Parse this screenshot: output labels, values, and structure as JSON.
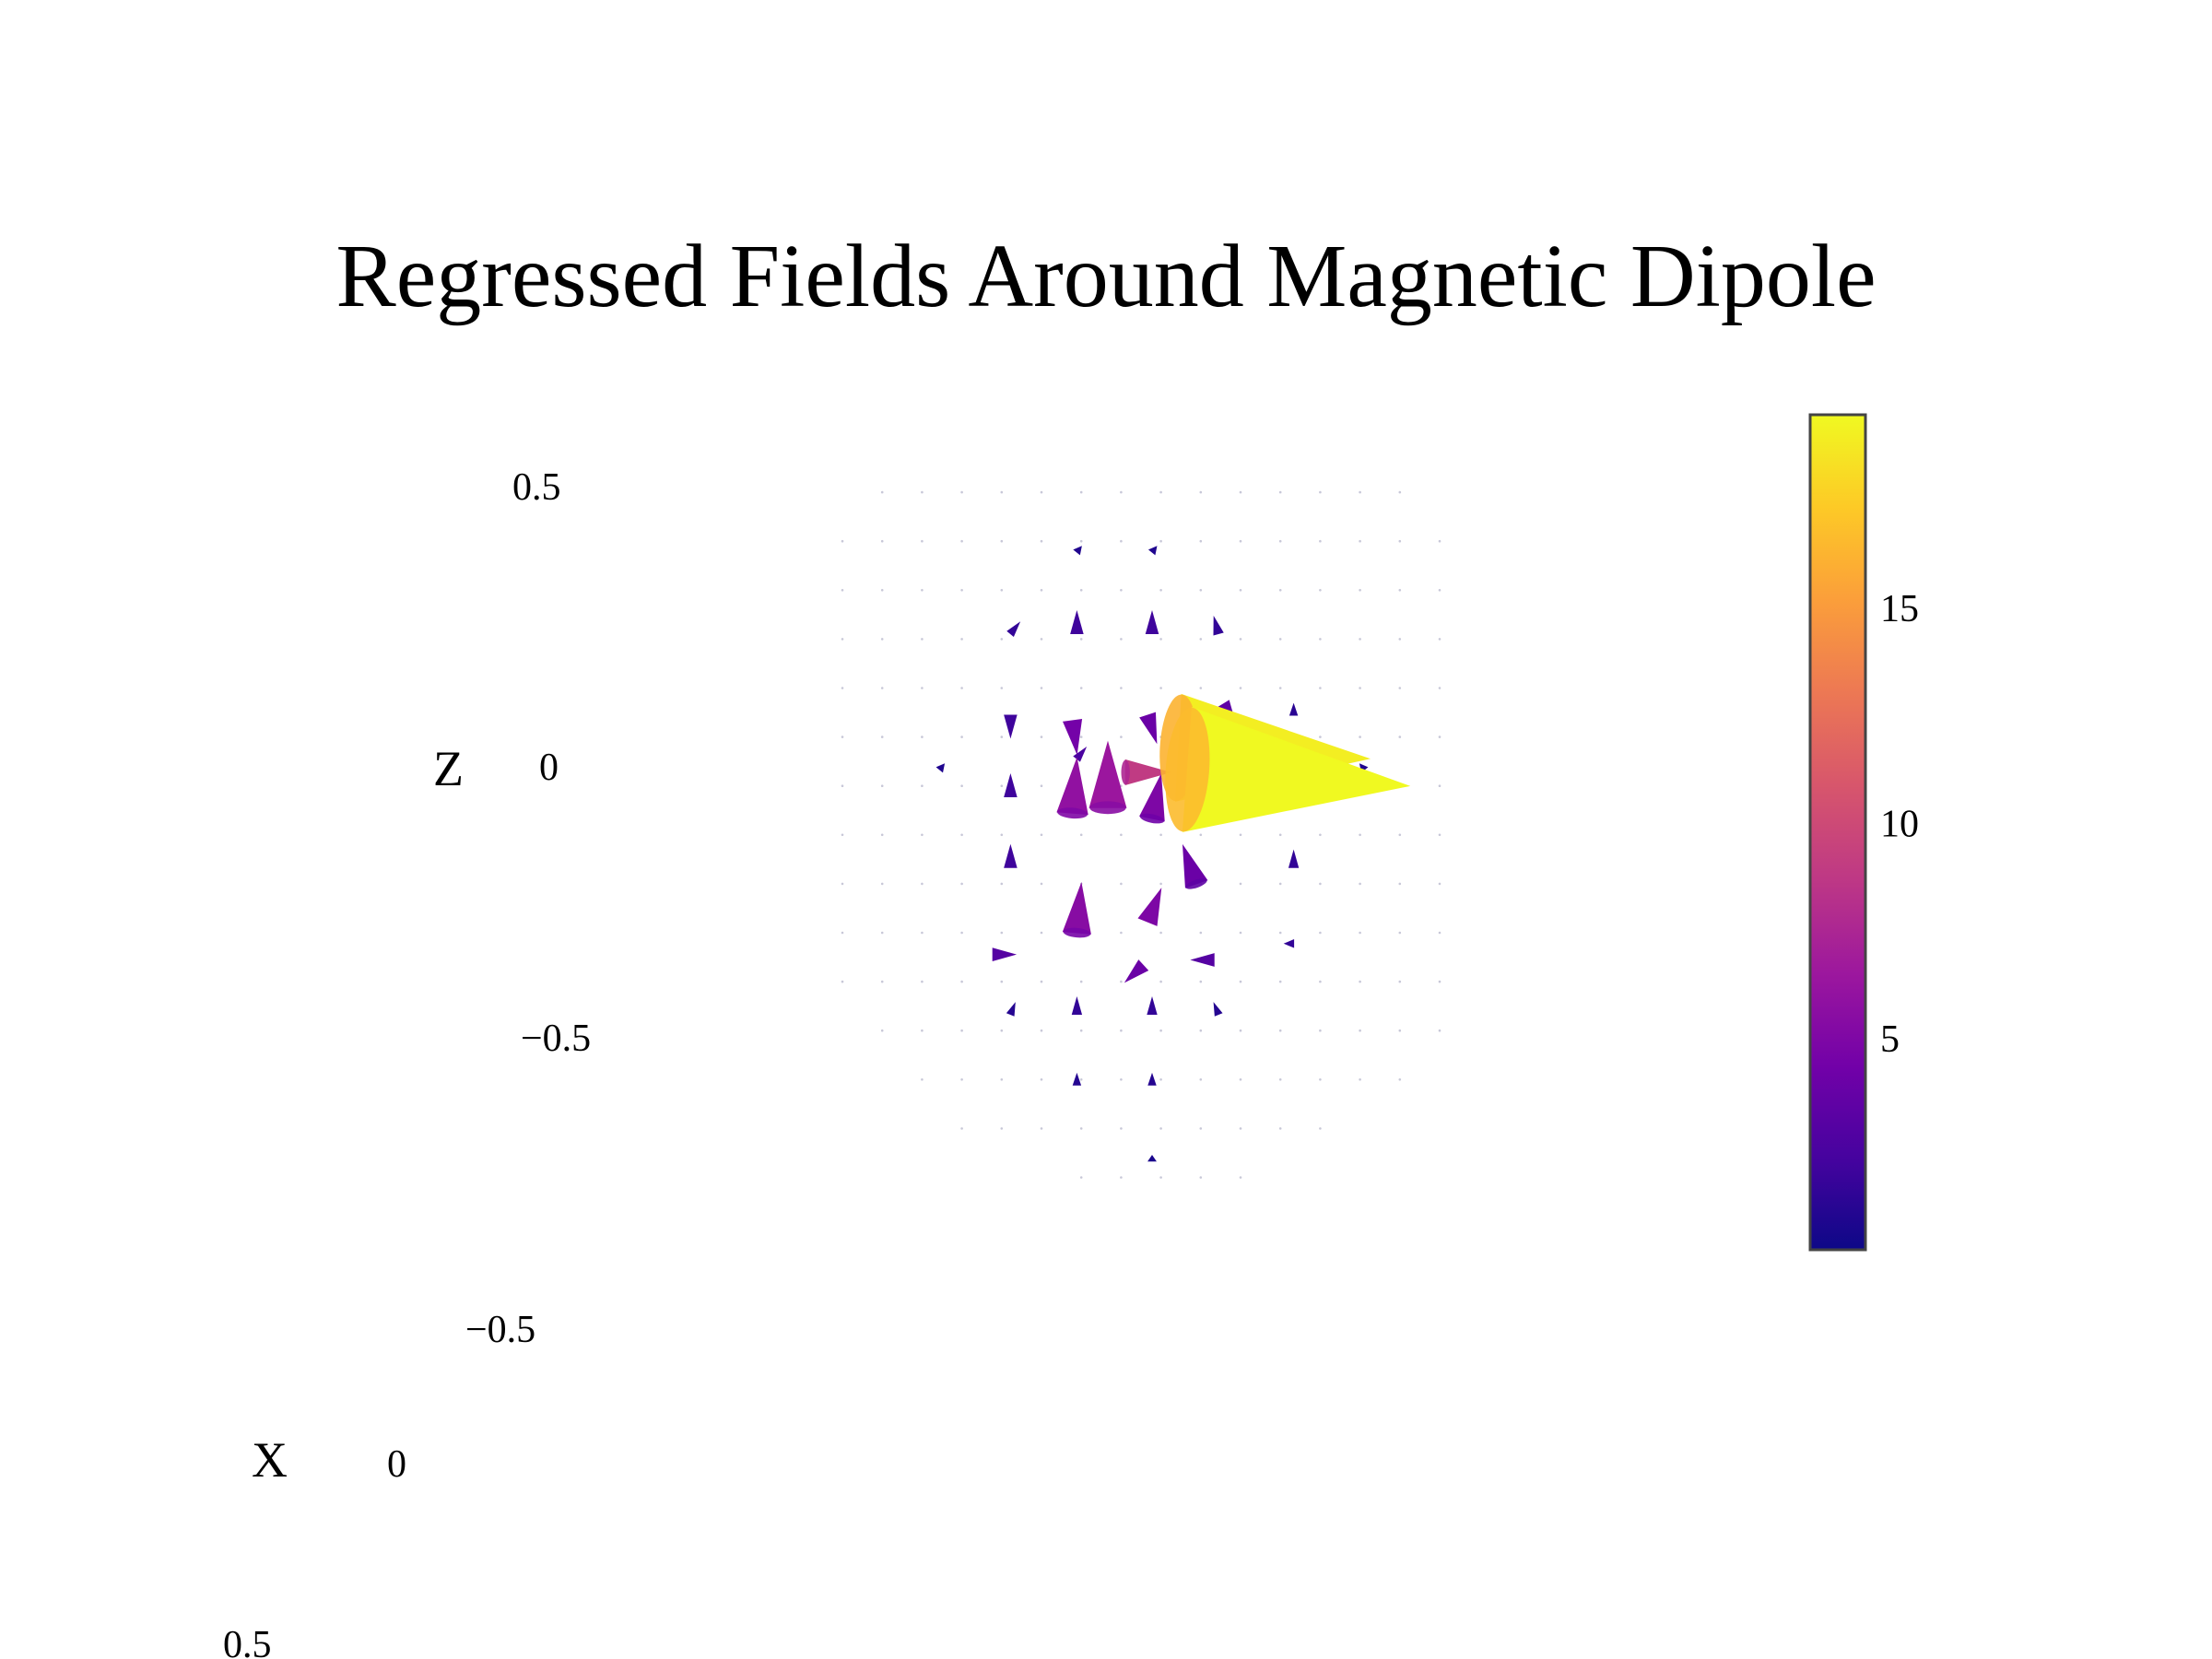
{
  "chart_data": {
    "type": "cone",
    "title": "Regressed Fields Around Magnetic Dipole",
    "scene": {
      "z_axis": {
        "label": "Z",
        "ticks": [
          "0.5",
          "0",
          "−0.5"
        ]
      },
      "x_axis": {
        "label": "X",
        "ticks": [
          "−0.5",
          "0",
          "0.5"
        ]
      },
      "y_axis": {
        "label": "",
        "ticks": []
      }
    },
    "colorbar": {
      "colorscale": "plasma",
      "ticks": [
        "15",
        "10",
        "5"
      ],
      "tick_values": [
        15,
        10,
        5
      ],
      "range": [
        0.1,
        19.5
      ]
    },
    "cones": [
      {
        "x": 0.08,
        "z": 0.0,
        "u": 0.5,
        "w": -0.03,
        "magnitude": 19.5
      },
      {
        "x": 0.06,
        "z": 0.04,
        "u": 0.43,
        "w": -0.02,
        "magnitude": 19.0
      },
      {
        "x": -0.06,
        "z": -0.005,
        "u": 0.1,
        "w": 0.0,
        "magnitude": 9.0
      },
      {
        "x": -0.1,
        "z": -0.07,
        "u": 0.0,
        "w": 0.12,
        "magnitude": 6.5
      },
      {
        "x": -0.18,
        "z": -0.08,
        "u": 0.01,
        "w": 0.1,
        "magnitude": 6.0
      },
      {
        "x": -0.17,
        "z": -0.3,
        "u": 0.01,
        "w": 0.09,
        "magnitude": 5.5
      },
      {
        "x": -0.01,
        "z": -0.28,
        "u": 0.03,
        "w": 0.06,
        "magnitude": 5.0
      },
      {
        "x": 0.0,
        "z": -0.09,
        "u": 0.02,
        "w": 0.08,
        "magnitude": 5.0
      },
      {
        "x": -0.18,
        "z": 0.09,
        "u": 0.01,
        "w": -0.06,
        "magnitude": 4.5
      },
      {
        "x": -0.01,
        "z": 0.1,
        "u": 0.02,
        "w": -0.05,
        "magnitude": 4.0
      },
      {
        "x": 0.16,
        "z": 0.12,
        "u": 0.03,
        "w": -0.04,
        "magnitude": 3.5
      },
      {
        "x": 0.1,
        "z": -0.21,
        "u": -0.03,
        "w": 0.07,
        "magnitude": 4.0
      },
      {
        "x": -0.02,
        "z": -0.36,
        "u": -0.04,
        "w": -0.03,
        "magnitude": 4.0
      },
      {
        "x": 0.14,
        "z": -0.35,
        "u": -0.05,
        "w": 0.0,
        "magnitude": 3.0
      },
      {
        "x": -0.36,
        "z": -0.34,
        "u": 0.05,
        "w": 0.0,
        "magnitude": 3.0
      },
      {
        "x": 0.22,
        "z": 0.0,
        "u": 0.05,
        "w": -0.01,
        "magnitude": 2.5
      },
      {
        "x": -0.17,
        "z": 0.02,
        "u": 0.02,
        "w": 0.02,
        "magnitude": 2.5
      },
      {
        "x": -0.17,
        "z": 0.25,
        "u": 0.0,
        "w": 0.04,
        "magnitude": 2.0
      },
      {
        "x": 0.0,
        "z": 0.25,
        "u": 0.0,
        "w": 0.04,
        "magnitude": 2.0
      },
      {
        "x": 0.15,
        "z": 0.25,
        "u": -0.01,
        "w": 0.03,
        "magnitude": 1.5
      },
      {
        "x": -0.32,
        "z": 0.25,
        "u": 0.02,
        "w": 0.02,
        "magnitude": 1.5
      },
      {
        "x": -0.32,
        "z": 0.1,
        "u": 0.0,
        "w": -0.04,
        "magnitude": 2.0
      },
      {
        "x": -0.32,
        "z": -0.05,
        "u": 0.0,
        "w": 0.04,
        "magnitude": 2.0
      },
      {
        "x": -0.32,
        "z": -0.18,
        "u": 0.0,
        "w": 0.04,
        "magnitude": 2.0
      },
      {
        "x": 0.32,
        "z": -0.18,
        "u": 0.0,
        "w": 0.03,
        "magnitude": 1.5
      },
      {
        "x": 0.32,
        "z": -0.32,
        "u": -0.02,
        "w": 0.0,
        "magnitude": 1.5
      },
      {
        "x": 0.32,
        "z": 0.1,
        "u": 0.0,
        "w": 0.02,
        "magnitude": 1.2
      },
      {
        "x": -0.17,
        "z": -0.45,
        "u": 0.0,
        "w": 0.03,
        "magnitude": 1.5
      },
      {
        "x": 0.0,
        "z": -0.45,
        "u": 0.0,
        "w": 0.03,
        "magnitude": 1.5
      },
      {
        "x": -0.17,
        "z": -0.58,
        "u": 0.0,
        "w": 0.02,
        "magnitude": 1.0
      },
      {
        "x": 0.0,
        "z": -0.58,
        "u": 0.0,
        "w": 0.02,
        "magnitude": 1.0
      },
      {
        "x": -0.32,
        "z": -0.45,
        "u": 0.01,
        "w": 0.02,
        "magnitude": 1.0
      },
      {
        "x": 0.15,
        "z": -0.45,
        "u": -0.01,
        "w": 0.02,
        "magnitude": 1.0
      },
      {
        "x": -0.48,
        "z": 0.0,
        "u": 0.01,
        "w": 0.01,
        "magnitude": 0.8
      },
      {
        "x": 0.48,
        "z": 0.0,
        "u": -0.01,
        "w": 0.01,
        "magnitude": 0.8
      },
      {
        "x": -0.17,
        "z": 0.4,
        "u": 0.01,
        "w": 0.01,
        "magnitude": 0.8
      },
      {
        "x": 0.0,
        "z": 0.4,
        "u": 0.01,
        "w": 0.01,
        "magnitude": 0.8
      },
      {
        "x": 0.0,
        "z": -0.72,
        "u": 0.0,
        "w": 0.01,
        "magnitude": 0.6
      }
    ]
  }
}
